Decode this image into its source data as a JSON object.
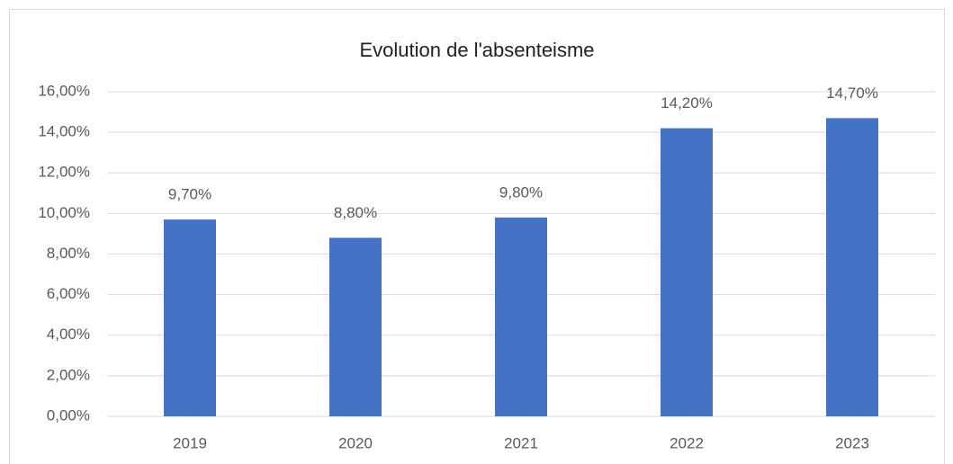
{
  "chart_data": {
    "type": "bar",
    "title": "Evolution de l'absenteisme",
    "categories": [
      "2019",
      "2020",
      "2021",
      "2022",
      "2023"
    ],
    "values": [
      9.7,
      8.8,
      9.8,
      14.2,
      14.7
    ],
    "value_labels": [
      "9,70%",
      "8,80%",
      "9,80%",
      "14,20%",
      "14,70%"
    ],
    "color": "#4472c4",
    "ylim": [
      0,
      16
    ],
    "yticks": [
      {
        "value": 0,
        "label": "0,00%"
      },
      {
        "value": 2,
        "label": "2,00%"
      },
      {
        "value": 4,
        "label": "4,00%"
      },
      {
        "value": 6,
        "label": "6,00%"
      },
      {
        "value": 8,
        "label": "8,00%"
      },
      {
        "value": 10,
        "label": "10,00%"
      },
      {
        "value": 12,
        "label": "12,00%"
      },
      {
        "value": 14,
        "label": "14,00%"
      },
      {
        "value": 16,
        "label": "16,00%"
      }
    ],
    "grid": true
  }
}
